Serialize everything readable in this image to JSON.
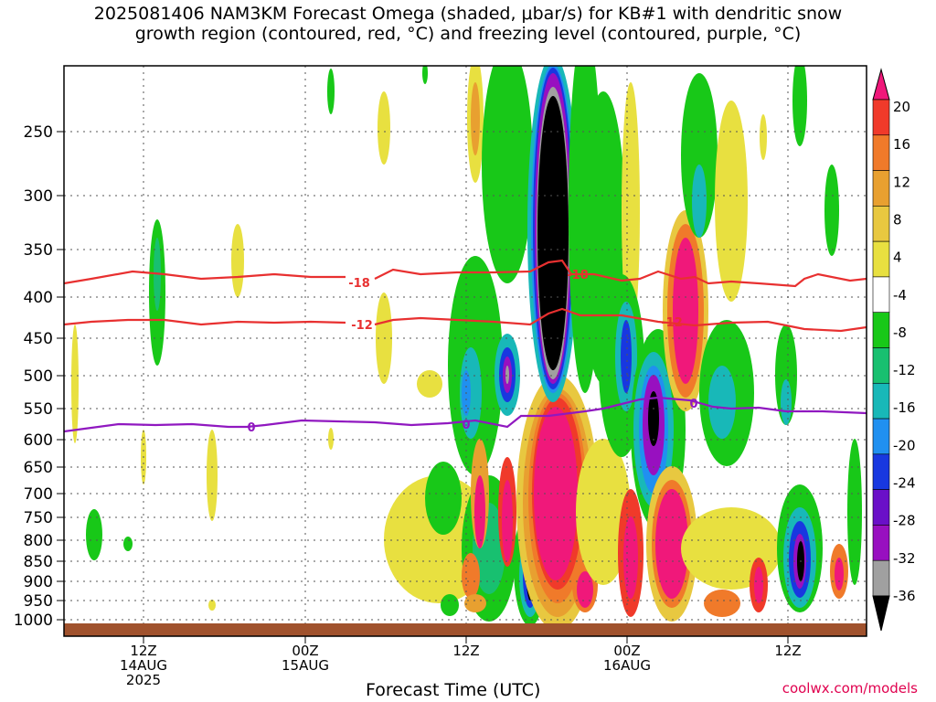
{
  "title_line1": "2025081406 NAM3KM Forecast Omega (shaded, μbar/s) for KB#1 with dendritic snow",
  "title_line2": "growth region (contoured, red, °C) and freezing level (contoured, purple, °C)",
  "credit": "coolwx.com/models",
  "chart_data": {
    "type": "heatmap",
    "xlabel": "Forecast Time (UTC)",
    "ylabel": "",
    "y_ticks": [
      "250",
      "300",
      "350",
      "400",
      "450",
      "500",
      "550",
      "600",
      "650",
      "700",
      "750",
      "800",
      "850",
      "900",
      "950",
      "1000"
    ],
    "y_values": [
      250,
      300,
      350,
      400,
      450,
      500,
      550,
      600,
      650,
      700,
      750,
      800,
      850,
      900,
      950,
      1000
    ],
    "x_ticks": [
      {
        "l1": "12Z",
        "l2": "14AUG",
        "l3": "2025",
        "h": 12
      },
      {
        "l1": "00Z",
        "l2": "15AUG",
        "l3": "",
        "h": 24
      },
      {
        "l1": "12Z",
        "l2": "",
        "l3": "",
        "h": 36
      },
      {
        "l1": "00Z",
        "l2": "16AUG",
        "l3": "",
        "h": 48
      },
      {
        "l1": "12Z",
        "l2": "",
        "l3": "",
        "h": 60
      }
    ],
    "colorbar": {
      "labels": [
        "20",
        "16",
        "12",
        "8",
        "4",
        "-4",
        "-8",
        "-12",
        "-16",
        "-20",
        "-24",
        "-28",
        "-32",
        "-36"
      ],
      "colors": [
        "#f0187a",
        "#f03a2a",
        "#f07a2a",
        "#e8a030",
        "#e8c840",
        "#e8e040",
        "#ffffff",
        "#18c818",
        "#18c070",
        "#18b8b8",
        "#2090f0",
        "#1838e0",
        "#6a10c8",
        "#9810c0",
        "#a0a0a0",
        "#000000"
      ]
    },
    "contours": [
      {
        "label": "-18",
        "color": "#e83030"
      },
      {
        "label": "-12",
        "color": "#e83030"
      },
      {
        "label": "0",
        "color": "#9018c0"
      }
    ]
  },
  "blobs": [
    {
      "x": 82,
      "y": 420,
      "rx": 4,
      "ry": 65,
      "c": "#e8e040"
    },
    {
      "x": 172,
      "y": 320,
      "rx": 9,
      "ry": 80,
      "c": "#18c818"
    },
    {
      "x": 172,
      "y": 300,
      "rx": 4,
      "ry": 40,
      "c": "#18c070"
    },
    {
      "x": 260,
      "y": 285,
      "rx": 7,
      "ry": 40,
      "c": "#e8e040"
    },
    {
      "x": 103,
      "y": 585,
      "rx": 9,
      "ry": 28,
      "c": "#18c818"
    },
    {
      "x": 140,
      "y": 595,
      "rx": 5,
      "ry": 8,
      "c": "#18c818"
    },
    {
      "x": 157,
      "y": 500,
      "rx": 3,
      "ry": 30,
      "c": "#e8e040"
    },
    {
      "x": 232,
      "y": 520,
      "rx": 6,
      "ry": 50,
      "c": "#e8e040"
    },
    {
      "x": 232,
      "y": 662,
      "rx": 4,
      "ry": 6,
      "c": "#e8e040"
    },
    {
      "x": 362,
      "y": 100,
      "rx": 4,
      "ry": 25,
      "c": "#18c818"
    },
    {
      "x": 362,
      "y": 480,
      "rx": 3,
      "ry": 12,
      "c": "#e8e040"
    },
    {
      "x": 420,
      "y": 140,
      "rx": 7,
      "ry": 40,
      "c": "#e8e040"
    },
    {
      "x": 420,
      "y": 370,
      "rx": 9,
      "ry": 50,
      "c": "#e8e040"
    },
    {
      "x": 465,
      "y": 80,
      "rx": 3,
      "ry": 12,
      "c": "#18c818"
    },
    {
      "x": 520,
      "y": 130,
      "rx": 9,
      "ry": 70,
      "c": "#e8e040"
    },
    {
      "x": 520,
      "y": 130,
      "rx": 5,
      "ry": 40,
      "c": "#e8a030"
    },
    {
      "x": 555,
      "y": 180,
      "rx": 28,
      "ry": 130,
      "c": "#18c818"
    },
    {
      "x": 520,
      "y": 400,
      "rx": 30,
      "ry": 120,
      "c": "#18c818"
    },
    {
      "x": 515,
      "y": 430,
      "rx": 12,
      "ry": 50,
      "c": "#18b8b8"
    },
    {
      "x": 510,
      "y": 430,
      "rx": 5,
      "ry": 25,
      "c": "#2090f0"
    },
    {
      "x": 555,
      "y": 410,
      "rx": 14,
      "ry": 45,
      "c": "#18b8b8"
    },
    {
      "x": 555,
      "y": 410,
      "rx": 9,
      "ry": 30,
      "c": "#1838e0"
    },
    {
      "x": 555,
      "y": 410,
      "rx": 5,
      "ry": 20,
      "c": "#9810c0"
    },
    {
      "x": 555,
      "y": 410,
      "rx": 2,
      "ry": 10,
      "c": "#a0a0a0"
    },
    {
      "x": 480,
      "y": 590,
      "rx": 60,
      "ry": 70,
      "c": "#e8e040"
    },
    {
      "x": 485,
      "y": 545,
      "rx": 20,
      "ry": 40,
      "c": "#18c818"
    },
    {
      "x": 470,
      "y": 420,
      "rx": 14,
      "ry": 15,
      "c": "#e8e040"
    },
    {
      "x": 535,
      "y": 600,
      "rx": 30,
      "ry": 80,
      "c": "#18c818"
    },
    {
      "x": 535,
      "y": 600,
      "rx": 18,
      "ry": 50,
      "c": "#18c070"
    },
    {
      "x": 525,
      "y": 540,
      "rx": 10,
      "ry": 60,
      "c": "#e8a030"
    },
    {
      "x": 525,
      "y": 560,
      "rx": 6,
      "ry": 40,
      "c": "#f0187a"
    },
    {
      "x": 555,
      "y": 560,
      "rx": 10,
      "ry": 60,
      "c": "#f03a2a"
    },
    {
      "x": 555,
      "y": 570,
      "rx": 6,
      "ry": 45,
      "c": "#f0187a"
    },
    {
      "x": 515,
      "y": 630,
      "rx": 10,
      "ry": 25,
      "c": "#f07a2a"
    },
    {
      "x": 492,
      "y": 662,
      "rx": 10,
      "ry": 12,
      "c": "#18c818"
    },
    {
      "x": 520,
      "y": 660,
      "rx": 12,
      "ry": 10,
      "c": "#e8a030"
    },
    {
      "x": 580,
      "y": 620,
      "rx": 18,
      "ry": 65,
      "c": "#18c818"
    },
    {
      "x": 580,
      "y": 630,
      "rx": 12,
      "ry": 45,
      "c": "#18b8b8"
    },
    {
      "x": 580,
      "y": 630,
      "rx": 8,
      "ry": 35,
      "c": "#1838e0"
    },
    {
      "x": 580,
      "y": 632,
      "rx": 4,
      "ry": 25,
      "c": "#000000"
    },
    {
      "x": 610,
      "y": 550,
      "rx": 45,
      "ry": 140,
      "c": "#e8c840"
    },
    {
      "x": 610,
      "y": 550,
      "rx": 38,
      "ry": 125,
      "c": "#e8a030"
    },
    {
      "x": 610,
      "y": 545,
      "rx": 32,
      "ry": 115,
      "c": "#f07a2a"
    },
    {
      "x": 610,
      "y": 540,
      "rx": 28,
      "ry": 105,
      "c": "#f03a2a"
    },
    {
      "x": 608,
      "y": 540,
      "rx": 24,
      "ry": 95,
      "c": "#f0187a"
    },
    {
      "x": 640,
      "y": 640,
      "rx": 14,
      "ry": 30,
      "c": "#f07a2a"
    },
    {
      "x": 640,
      "y": 645,
      "rx": 9,
      "ry": 20,
      "c": "#f0187a"
    },
    {
      "x": 660,
      "y": 560,
      "rx": 30,
      "ry": 80,
      "c": "#e8e040"
    },
    {
      "x": 605,
      "y": 250,
      "rx": 28,
      "ry": 190,
      "c": "#18b8b8"
    },
    {
      "x": 605,
      "y": 250,
      "rx": 24,
      "ry": 180,
      "c": "#2090f0"
    },
    {
      "x": 605,
      "y": 250,
      "rx": 22,
      "ry": 176,
      "c": "#1838e0"
    },
    {
      "x": 605,
      "y": 250,
      "rx": 20,
      "ry": 170,
      "c": "#9810c0"
    },
    {
      "x": 605,
      "y": 255,
      "rx": 18,
      "ry": 160,
      "c": "#a0a0a0"
    },
    {
      "x": 605,
      "y": 255,
      "rx": 17,
      "ry": 150,
      "c": "#000000"
    },
    {
      "x": 640,
      "y": 230,
      "rx": 18,
      "ry": 200,
      "c": "#18c818"
    },
    {
      "x": 660,
      "y": 260,
      "rx": 25,
      "ry": 160,
      "c": "#18c818"
    },
    {
      "x": 690,
      "y": 230,
      "rx": 10,
      "ry": 140,
      "c": "#e8e040"
    },
    {
      "x": 680,
      "y": 400,
      "rx": 25,
      "ry": 100,
      "c": "#18c818"
    },
    {
      "x": 685,
      "y": 390,
      "rx": 12,
      "ry": 60,
      "c": "#18b8b8"
    },
    {
      "x": 685,
      "y": 390,
      "rx": 6,
      "ry": 40,
      "c": "#1838e0"
    },
    {
      "x": 720,
      "y": 470,
      "rx": 30,
      "ry": 110,
      "c": "#18c818"
    },
    {
      "x": 715,
      "y": 470,
      "rx": 22,
      "ry": 85,
      "c": "#18b8b8"
    },
    {
      "x": 715,
      "y": 470,
      "rx": 16,
      "ry": 70,
      "c": "#2090f0"
    },
    {
      "x": 715,
      "y": 465,
      "rx": 12,
      "ry": 55,
      "c": "#9810c0"
    },
    {
      "x": 715,
      "y": 458,
      "rx": 6,
      "ry": 30,
      "c": "#000000"
    },
    {
      "x": 735,
      "y": 595,
      "rx": 28,
      "ry": 85,
      "c": "#e8c840"
    },
    {
      "x": 735,
      "y": 595,
      "rx": 22,
      "ry": 70,
      "c": "#f07a2a"
    },
    {
      "x": 735,
      "y": 595,
      "rx": 18,
      "ry": 60,
      "c": "#f0187a"
    },
    {
      "x": 690,
      "y": 605,
      "rx": 14,
      "ry": 70,
      "c": "#f03a2a"
    },
    {
      "x": 690,
      "y": 610,
      "rx": 8,
      "ry": 45,
      "c": "#f0187a"
    },
    {
      "x": 750,
      "y": 340,
      "rx": 25,
      "ry": 110,
      "c": "#e8c840"
    },
    {
      "x": 750,
      "y": 340,
      "rx": 20,
      "ry": 95,
      "c": "#f07a2a"
    },
    {
      "x": 750,
      "y": 340,
      "rx": 14,
      "ry": 80,
      "c": "#f0187a"
    },
    {
      "x": 765,
      "y": 170,
      "rx": 20,
      "ry": 90,
      "c": "#18c818"
    },
    {
      "x": 765,
      "y": 220,
      "rx": 8,
      "ry": 40,
      "c": "#18b8b8"
    },
    {
      "x": 800,
      "y": 220,
      "rx": 18,
      "ry": 110,
      "c": "#e8e040"
    },
    {
      "x": 795,
      "y": 430,
      "rx": 30,
      "ry": 80,
      "c": "#18c818"
    },
    {
      "x": 790,
      "y": 440,
      "rx": 15,
      "ry": 40,
      "c": "#18b8b8"
    },
    {
      "x": 800,
      "y": 600,
      "rx": 55,
      "ry": 45,
      "c": "#e8e040"
    },
    {
      "x": 790,
      "y": 660,
      "rx": 20,
      "ry": 15,
      "c": "#f07a2a"
    },
    {
      "x": 830,
      "y": 640,
      "rx": 10,
      "ry": 30,
      "c": "#f03a2a"
    },
    {
      "x": 830,
      "y": 640,
      "rx": 5,
      "ry": 20,
      "c": "#f0187a"
    },
    {
      "x": 835,
      "y": 150,
      "rx": 4,
      "ry": 25,
      "c": "#e8e040"
    },
    {
      "x": 860,
      "y": 410,
      "rx": 12,
      "ry": 55,
      "c": "#18c818"
    },
    {
      "x": 860,
      "y": 440,
      "rx": 6,
      "ry": 25,
      "c": "#18b8b8"
    },
    {
      "x": 875,
      "y": 110,
      "rx": 8,
      "ry": 50,
      "c": "#18c818"
    },
    {
      "x": 875,
      "y": 600,
      "rx": 25,
      "ry": 70,
      "c": "#18c818"
    },
    {
      "x": 875,
      "y": 610,
      "rx": 18,
      "ry": 55,
      "c": "#18b8b8"
    },
    {
      "x": 875,
      "y": 612,
      "rx": 12,
      "ry": 42,
      "c": "#1838e0"
    },
    {
      "x": 875,
      "y": 614,
      "rx": 7,
      "ry": 30,
      "c": "#9810c0"
    },
    {
      "x": 876,
      "y": 614,
      "rx": 4,
      "ry": 22,
      "c": "#000000"
    },
    {
      "x": 910,
      "y": 230,
      "rx": 8,
      "ry": 50,
      "c": "#18c818"
    },
    {
      "x": 918,
      "y": 625,
      "rx": 10,
      "ry": 30,
      "c": "#f07a2a"
    },
    {
      "x": 918,
      "y": 628,
      "rx": 5,
      "ry": 18,
      "c": "#f0187a"
    },
    {
      "x": 935,
      "y": 560,
      "rx": 8,
      "ry": 80,
      "c": "#18c818"
    },
    {
      "x": 450,
      "y": 370,
      "rx": 0,
      "ry": 0,
      "c": "#ffffff"
    }
  ],
  "lines": {
    "m18": [
      [
        70,
        310
      ],
      [
        100,
        305
      ],
      [
        145,
        297
      ],
      [
        180,
        300
      ],
      [
        220,
        305
      ],
      [
        260,
        303
      ],
      [
        300,
        300
      ],
      [
        340,
        303
      ],
      [
        378,
        303
      ]
    ],
    "m18b": [
      [
        410,
        305
      ],
      [
        430,
        295
      ],
      [
        460,
        300
      ],
      [
        500,
        298
      ],
      [
        540,
        298
      ],
      [
        580,
        297
      ],
      [
        600,
        287
      ],
      [
        615,
        285
      ],
      [
        625,
        300
      ],
      [
        650,
        300
      ],
      [
        680,
        307
      ],
      [
        700,
        305
      ],
      [
        720,
        297
      ],
      [
        745,
        305
      ],
      [
        760,
        303
      ],
      [
        775,
        310
      ],
      [
        800,
        308
      ],
      [
        830,
        310
      ],
      [
        870,
        313
      ],
      [
        880,
        305
      ],
      [
        895,
        300
      ],
      [
        930,
        307
      ],
      [
        948,
        305
      ]
    ],
    "m12": [
      [
        70,
        355
      ],
      [
        100,
        352
      ],
      [
        140,
        350
      ],
      [
        180,
        350
      ],
      [
        220,
        355
      ],
      [
        260,
        352
      ],
      [
        300,
        353
      ],
      [
        340,
        352
      ],
      [
        378,
        353
      ]
    ],
    "m12b": [
      [
        410,
        355
      ],
      [
        430,
        350
      ],
      [
        460,
        348
      ],
      [
        500,
        350
      ],
      [
        540,
        352
      ],
      [
        580,
        355
      ],
      [
        600,
        343
      ],
      [
        615,
        338
      ],
      [
        635,
        345
      ],
      [
        680,
        345
      ],
      [
        720,
        352
      ],
      [
        760,
        356
      ],
      [
        800,
        353
      ],
      [
        840,
        352
      ],
      [
        880,
        360
      ],
      [
        920,
        362
      ],
      [
        948,
        358
      ]
    ],
    "zero": [
      [
        70,
        472
      ],
      [
        100,
        468
      ],
      [
        130,
        464
      ],
      [
        170,
        465
      ],
      [
        210,
        464
      ],
      [
        250,
        467
      ],
      [
        270,
        467
      ],
      [
        290,
        465
      ],
      [
        330,
        460
      ],
      [
        370,
        461
      ],
      [
        410,
        462
      ],
      [
        450,
        465
      ],
      [
        490,
        463
      ],
      [
        520,
        460
      ],
      [
        555,
        467
      ],
      [
        570,
        455
      ],
      [
        600,
        455
      ],
      [
        640,
        450
      ],
      [
        660,
        447
      ],
      [
        700,
        437
      ],
      [
        720,
        435
      ],
      [
        755,
        438
      ],
      [
        780,
        445
      ],
      [
        800,
        447
      ],
      [
        830,
        446
      ],
      [
        860,
        450
      ],
      [
        900,
        450
      ],
      [
        948,
        452
      ]
    ]
  }
}
